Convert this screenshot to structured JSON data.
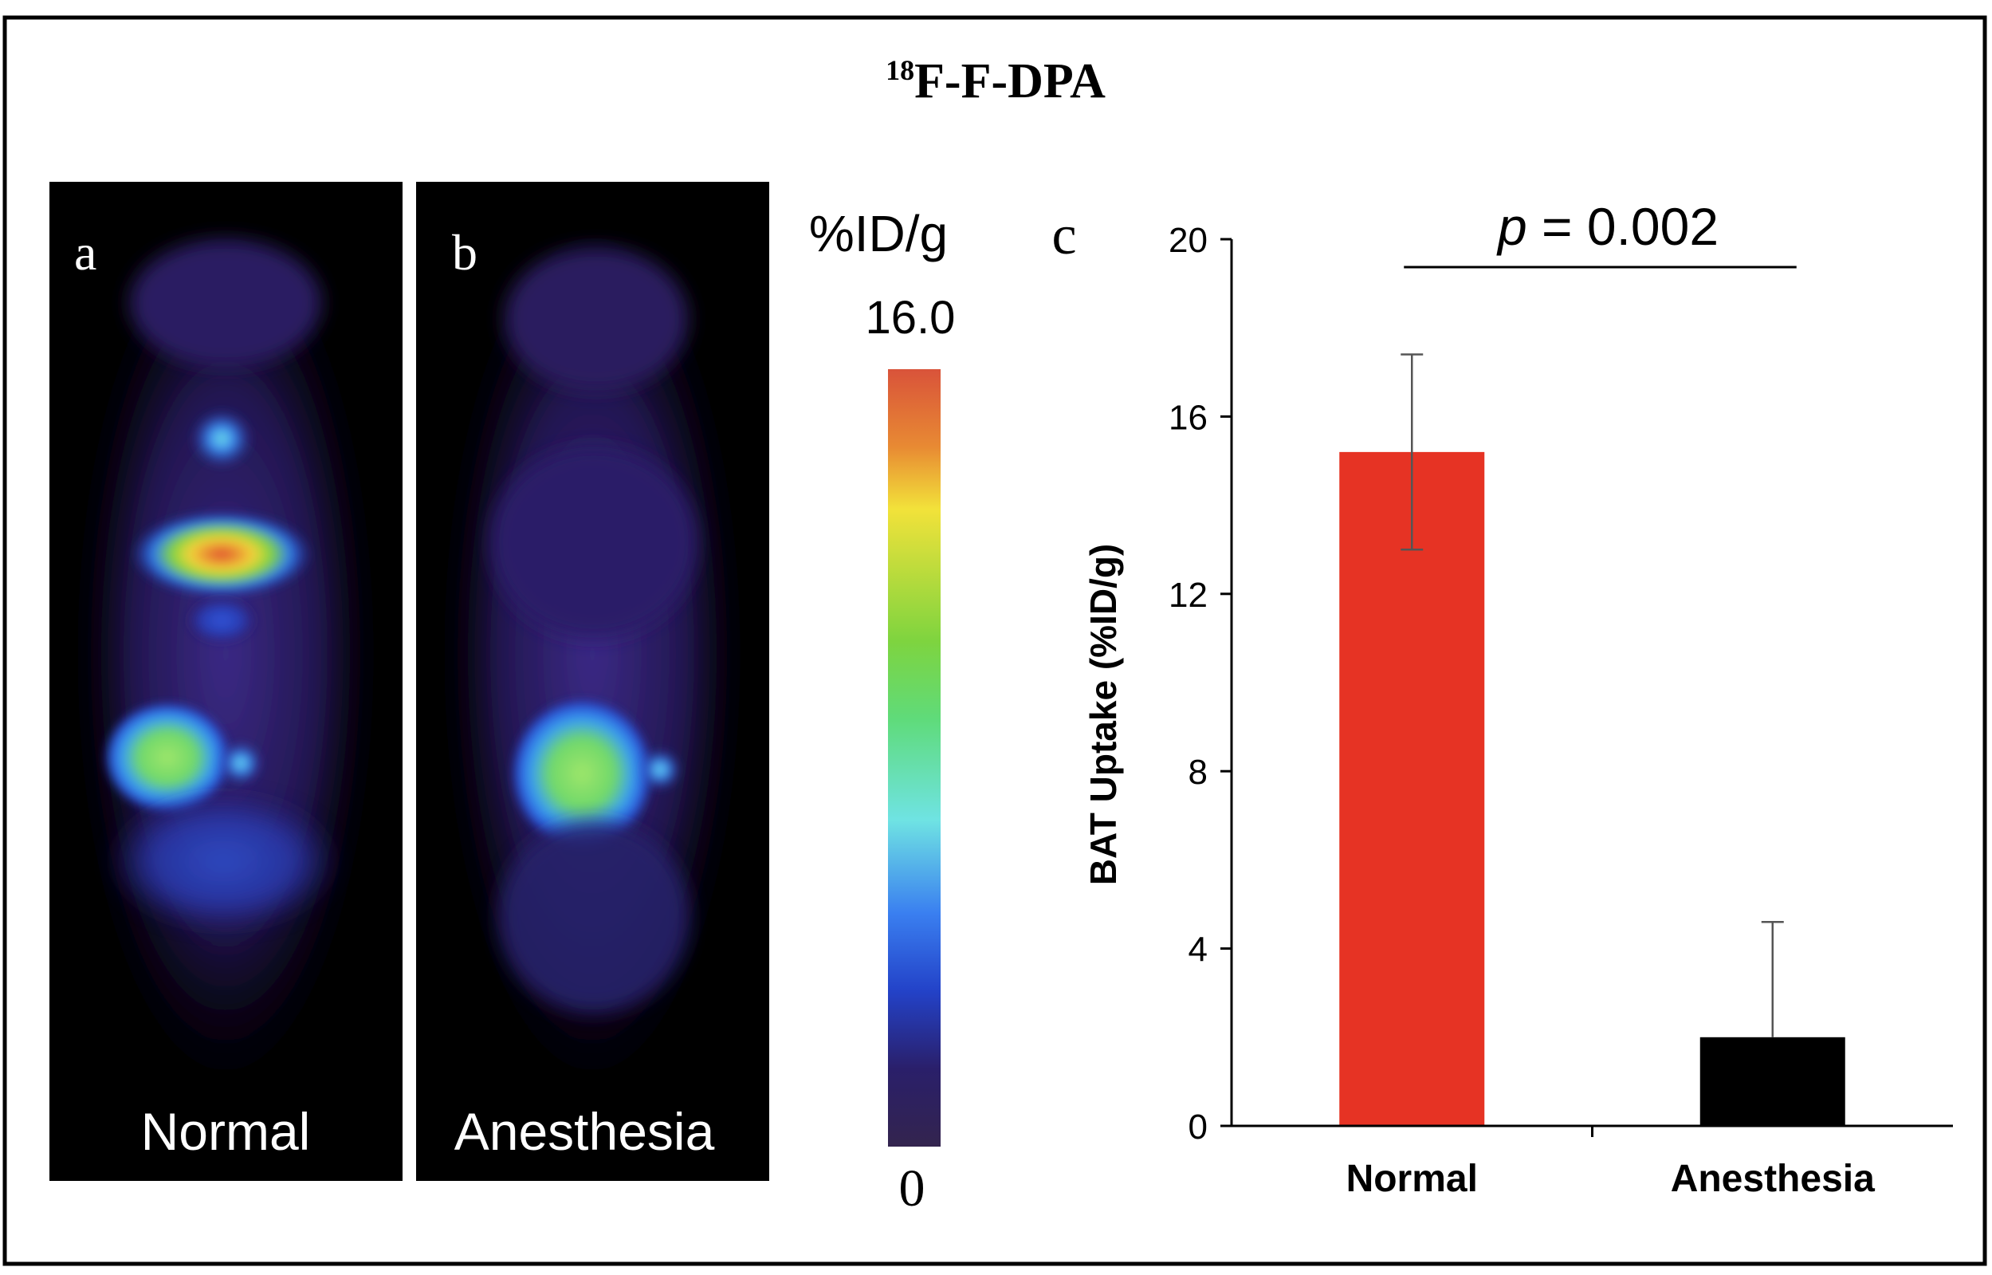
{
  "figure": {
    "title_sup": "18",
    "title_main": "F-F-DPA"
  },
  "panels": {
    "a": {
      "letter": "a",
      "caption": "Normal"
    },
    "b": {
      "letter": "b",
      "caption": "Anesthesia"
    },
    "c": {
      "letter": "c"
    }
  },
  "colorbar": {
    "unit": "%ID/g",
    "max_label": "16.0",
    "min_label": "0",
    "stops": [
      "#d9533a",
      "#e88a33",
      "#f2e23a",
      "#7ed43f",
      "#5fdb7a",
      "#6fe3e3",
      "#3a7ff0",
      "#2342c8",
      "#2a1f6a",
      "#33244e"
    ]
  },
  "chart_data": {
    "type": "bar",
    "categories": [
      "Normal",
      "Anesthesia"
    ],
    "values": [
      15.2,
      2.0
    ],
    "errors": [
      2.2,
      2.6
    ],
    "bar_colors": [
      "#e63324",
      "#000000"
    ],
    "ylabel": "BAT Uptake (%ID/g)",
    "ylim": [
      0,
      20
    ],
    "yticks": [
      0,
      4,
      8,
      12,
      16,
      20
    ],
    "annotation": {
      "p_label": "p",
      "p_rest": " = 0.002"
    }
  }
}
